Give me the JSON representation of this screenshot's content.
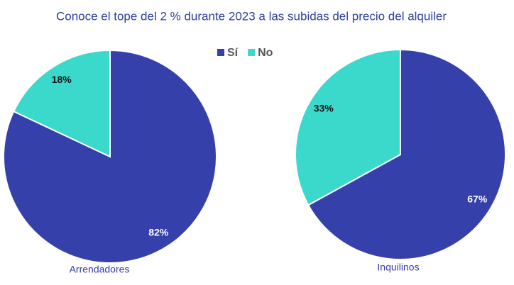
{
  "title": "Conoce el tope del 2 % durante 2023 a las subidas del precio del alquiler",
  "chart_data": [
    {
      "type": "pie",
      "title": "Arrendadores",
      "categories": [
        "Sí",
        "No"
      ],
      "values": [
        82,
        18
      ],
      "value_labels": [
        "82%",
        "18%"
      ],
      "colors": [
        "#3640ab",
        "#3bd9cc"
      ]
    },
    {
      "type": "pie",
      "title": "Inquilinos",
      "categories": [
        "Sí",
        "No"
      ],
      "values": [
        67,
        33
      ],
      "value_labels": [
        "67%",
        "33%"
      ],
      "colors": [
        "#3640ab",
        "#3bd9cc"
      ]
    }
  ]
}
